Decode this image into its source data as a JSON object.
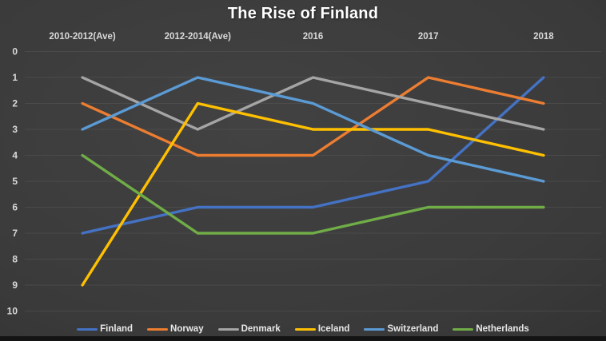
{
  "chart_data": {
    "type": "line",
    "title": "The Rise of Finland",
    "categories": [
      "2010-2012(Ave)",
      "2012-2014(Ave)",
      "2016",
      "2017",
      "2018"
    ],
    "series": [
      {
        "name": "Finland",
        "color": "#4472C4",
        "values": [
          7,
          6,
          6,
          5,
          1
        ]
      },
      {
        "name": "Norway",
        "color": "#ED7D31",
        "values": [
          2,
          4,
          4,
          1,
          2
        ]
      },
      {
        "name": "Denmark",
        "color": "#A5A5A5",
        "values": [
          1,
          3,
          1,
          2,
          3
        ]
      },
      {
        "name": "Iceland",
        "color": "#FFC000",
        "values": [
          9,
          2,
          3,
          3,
          4
        ]
      },
      {
        "name": "Switzerland",
        "color": "#5B9BD5",
        "values": [
          3,
          1,
          2,
          4,
          5
        ]
      },
      {
        "name": "Netherlands",
        "color": "#70AD47",
        "values": [
          4,
          7,
          7,
          6,
          6
        ]
      }
    ],
    "xlabel": "",
    "ylabel": "",
    "ylim": [
      0,
      10
    ],
    "y_axis_inverted": true,
    "y_tick_step": 1,
    "grid": true,
    "legend_position": "bottom",
    "x_labels_position": "top",
    "gridline_color": "#555555",
    "axis_text_color": "#d9d9d9",
    "title_color": "#ffffff",
    "background_color": "#3a3a3a"
  }
}
